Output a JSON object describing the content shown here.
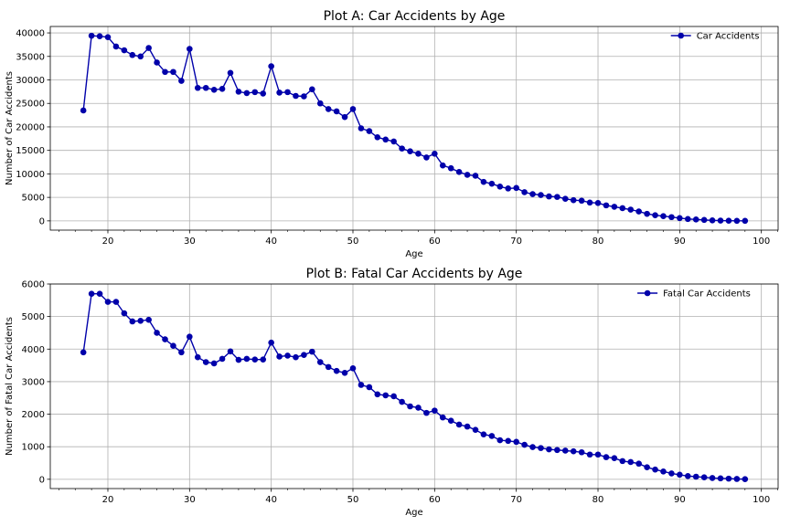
{
  "chart_data": [
    {
      "type": "line",
      "title": "Plot A: Car Accidents by Age",
      "xlabel": "Age",
      "ylabel": "Number of Car Accidents",
      "xlim": [
        12.95,
        102.05
      ],
      "ylim": [
        -1970,
        41370
      ],
      "xticks": [
        20,
        30,
        40,
        50,
        60,
        70,
        80,
        90,
        100
      ],
      "yticks": [
        0,
        5000,
        10000,
        15000,
        20000,
        25000,
        30000,
        35000,
        40000
      ],
      "grid": true,
      "legend_position": "top-right",
      "color": "#0000aa",
      "series": [
        {
          "name": "Car Accidents",
          "x": [
            17,
            18,
            19,
            20,
            21,
            22,
            23,
            24,
            25,
            26,
            27,
            28,
            29,
            30,
            31,
            32,
            33,
            34,
            35,
            36,
            37,
            38,
            39,
            40,
            41,
            42,
            43,
            44,
            45,
            46,
            47,
            48,
            49,
            50,
            51,
            52,
            53,
            54,
            55,
            56,
            57,
            58,
            59,
            60,
            61,
            62,
            63,
            64,
            65,
            66,
            67,
            68,
            69,
            70,
            71,
            72,
            73,
            74,
            75,
            76,
            77,
            78,
            79,
            80,
            81,
            82,
            83,
            84,
            85,
            86,
            87,
            88,
            89,
            90,
            91,
            92,
            93,
            94,
            95,
            96,
            97,
            98
          ],
          "y": [
            23500,
            39400,
            39300,
            39100,
            37100,
            36300,
            35300,
            35000,
            36800,
            33700,
            31700,
            31700,
            29800,
            36600,
            28300,
            28300,
            27900,
            28100,
            31500,
            27500,
            27200,
            27400,
            27100,
            32900,
            27300,
            27400,
            26600,
            26500,
            28000,
            25000,
            23800,
            23300,
            22100,
            23800,
            19700,
            19100,
            17800,
            17300,
            16900,
            15400,
            14800,
            14300,
            13500,
            14300,
            11800,
            11200,
            10400,
            9800,
            9600,
            8300,
            7900,
            7300,
            6900,
            7000,
            6100,
            5700,
            5500,
            5200,
            5100,
            4700,
            4400,
            4300,
            3900,
            3800,
            3300,
            3000,
            2700,
            2400,
            2000,
            1500,
            1200,
            1000,
            800,
            600,
            400,
            300,
            200,
            100,
            60,
            30,
            15,
            5
          ]
        }
      ]
    },
    {
      "type": "line",
      "title": "Plot B: Fatal Car Accidents by Age",
      "xlabel": "Age",
      "ylabel": "Number of Fatal Car Accidents",
      "xlim": [
        12.95,
        102.05
      ],
      "ylim": [
        -285,
        6000
      ],
      "xticks": [
        20,
        30,
        40,
        50,
        60,
        70,
        80,
        90,
        100
      ],
      "yticks": [
        0,
        1000,
        2000,
        3000,
        4000,
        5000,
        6000
      ],
      "grid": true,
      "legend_position": "top-right",
      "color": "#0000aa",
      "series": [
        {
          "name": "Fatal Car Accidents",
          "x": [
            17,
            18,
            19,
            20,
            21,
            22,
            23,
            24,
            25,
            26,
            27,
            28,
            29,
            30,
            31,
            32,
            33,
            34,
            35,
            36,
            37,
            38,
            39,
            40,
            41,
            42,
            43,
            44,
            45,
            46,
            47,
            48,
            49,
            50,
            51,
            52,
            53,
            54,
            55,
            56,
            57,
            58,
            59,
            60,
            61,
            62,
            63,
            64,
            65,
            66,
            67,
            68,
            69,
            70,
            71,
            72,
            73,
            74,
            75,
            76,
            77,
            78,
            79,
            80,
            81,
            82,
            83,
            84,
            85,
            86,
            87,
            88,
            89,
            90,
            91,
            92,
            93,
            94,
            95,
            96,
            97,
            98
          ],
          "y": [
            3900,
            5700,
            5700,
            5450,
            5450,
            5100,
            4850,
            4870,
            4900,
            4500,
            4300,
            4100,
            3900,
            4380,
            3750,
            3600,
            3560,
            3700,
            3930,
            3670,
            3700,
            3680,
            3680,
            4200,
            3770,
            3800,
            3750,
            3820,
            3920,
            3600,
            3450,
            3330,
            3270,
            3410,
            2900,
            2830,
            2610,
            2580,
            2550,
            2380,
            2240,
            2200,
            2040,
            2110,
            1900,
            1800,
            1680,
            1620,
            1520,
            1380,
            1330,
            1200,
            1180,
            1150,
            1060,
            990,
            960,
            920,
            900,
            880,
            860,
            830,
            760,
            760,
            680,
            650,
            560,
            530,
            480,
            370,
            300,
            240,
            180,
            140,
            100,
            80,
            60,
            40,
            30,
            20,
            10,
            5
          ]
        }
      ]
    }
  ]
}
